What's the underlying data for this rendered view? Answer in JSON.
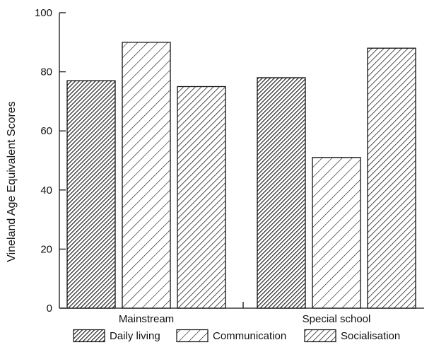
{
  "chart_data": {
    "type": "bar",
    "title": "",
    "xlabel": "",
    "ylabel": "Vineland Age Equivalent Scores",
    "ylim": [
      0,
      100
    ],
    "yticks": [
      0,
      20,
      40,
      60,
      80,
      100
    ],
    "grid": false,
    "legend_position": "bottom",
    "categories": [
      "Mainstream",
      "Special school"
    ],
    "series": [
      {
        "name": "Daily living",
        "pattern": "dense-diagonal",
        "values": [
          77,
          78
        ]
      },
      {
        "name": "Communication",
        "pattern": "sparse-diagonal",
        "values": [
          90,
          51
        ]
      },
      {
        "name": "Socialisation",
        "pattern": "medium-diagonal",
        "values": [
          75,
          88
        ]
      }
    ]
  }
}
